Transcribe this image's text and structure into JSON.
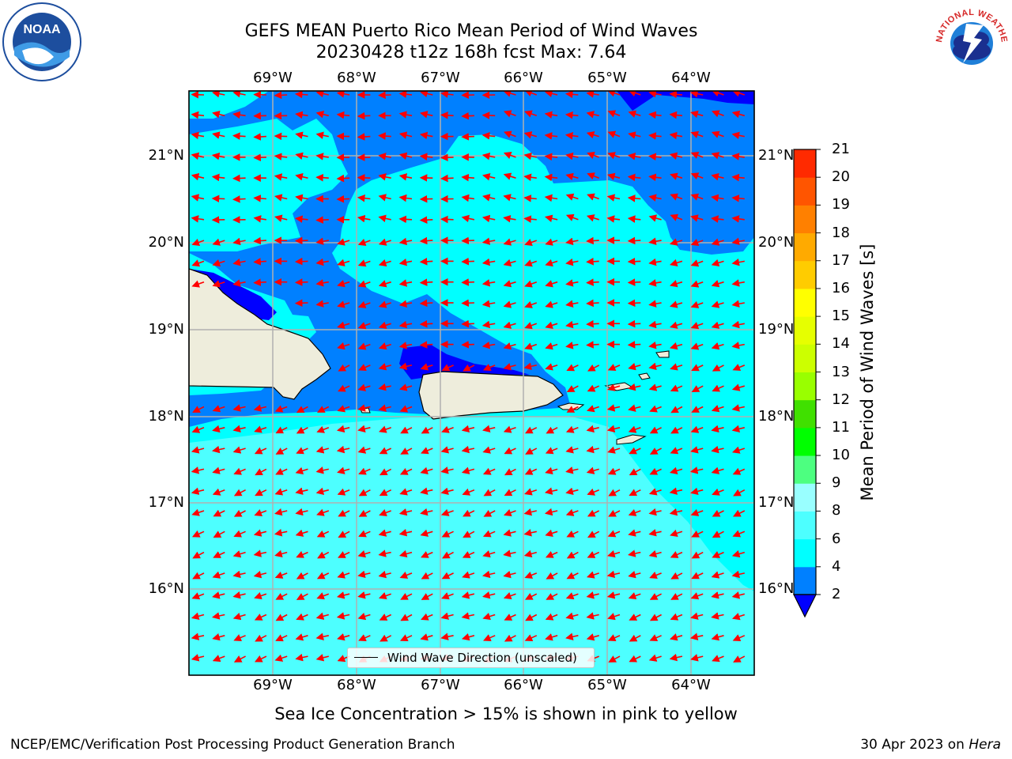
{
  "header": {
    "title_line1": "GEFS MEAN Puerto Rico Mean Period of Wind Waves",
    "title_line2": "20230428 t12z 168h fcst   Max: 7.64"
  },
  "logos": {
    "left": "NOAA",
    "right": "NATIONAL WEATHER SERVICE"
  },
  "map": {
    "lon_ticks": [
      "69°W",
      "68°W",
      "67°W",
      "66°W",
      "65°W",
      "64°W"
    ],
    "lat_ticks": [
      "21°N",
      "20°N",
      "19°N",
      "18°N",
      "17°N",
      "16°N"
    ],
    "extent": {
      "lon": [
        -70.0,
        -63.25
      ],
      "lat": [
        15.0,
        21.75
      ]
    },
    "gridlines": true,
    "legend": {
      "label": "Wind Wave Direction (unscaled)",
      "placement": "bottom-center"
    },
    "arrow_color": "#ff0000",
    "land_color": "#eeeddc",
    "ocean_colors": {
      "2-4": "#0080ff",
      "4-6": "#00ffff",
      "6-8": "#4dffff",
      "<2": "#0000ff"
    }
  },
  "colorbar": {
    "label": "Mean Period of Wind Waves [s]",
    "ticks": [
      "2",
      "4",
      "6",
      "8",
      "9",
      "10",
      "11",
      "12",
      "13",
      "14",
      "15",
      "16",
      "17",
      "18",
      "19",
      "20",
      "21"
    ],
    "colors": [
      "#0080ff",
      "#00ffff",
      "#4dffff",
      "#99ffff",
      "#4dff80",
      "#00ff00",
      "#40e000",
      "#99ff00",
      "#ccff00",
      "#e6ff00",
      "#ffff00",
      "#ffcc00",
      "#ffaa00",
      "#ff8000",
      "#ff5500",
      "#ff2a00",
      "#ff0000"
    ],
    "under_color": "#0000ff"
  },
  "footer": {
    "subtitle": "Sea Ice Concentration > 15% is shown in pink to yellow",
    "left": "NCEP/EMC/Verification Post Processing Product Generation Branch",
    "date": "30 Apr 2023 on ",
    "host": "Hera"
  }
}
